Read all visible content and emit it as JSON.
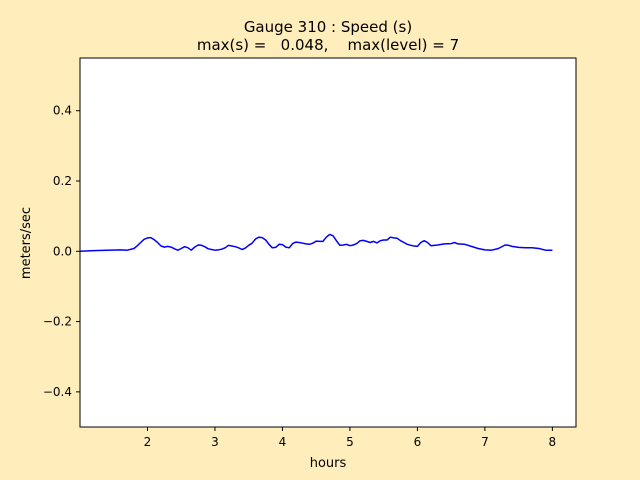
{
  "chart_data": {
    "type": "line",
    "title_line1": "Gauge 310 : Speed (s)",
    "title_line2": "max(s) =   0.048,    max(level) = 7",
    "xlabel": "hours",
    "ylabel": "meters/sec",
    "xlim": [
      1.0,
      8.35
    ],
    "ylim": [
      -0.5,
      0.55
    ],
    "xticks": [
      2,
      3,
      4,
      5,
      6,
      7,
      8
    ],
    "yticks": [
      -0.4,
      -0.2,
      0.0,
      0.2,
      0.4
    ],
    "xtick_labels": [
      "2",
      "3",
      "4",
      "5",
      "6",
      "7",
      "8"
    ],
    "ytick_labels": [
      "−0.4",
      "−0.2",
      "0.0",
      "0.2",
      "0.4"
    ],
    "grid": false,
    "series": [
      {
        "color": "#0000ff",
        "x": [
          1.0,
          1.2,
          1.4,
          1.6,
          1.7,
          1.8,
          1.85,
          1.9,
          1.95,
          2.0,
          2.05,
          2.1,
          2.15,
          2.2,
          2.25,
          2.3,
          2.35,
          2.4,
          2.45,
          2.5,
          2.55,
          2.6,
          2.65,
          2.7,
          2.75,
          2.8,
          2.85,
          2.9,
          2.95,
          3.0,
          3.05,
          3.1,
          3.15,
          3.2,
          3.25,
          3.3,
          3.35,
          3.4,
          3.45,
          3.5,
          3.55,
          3.6,
          3.65,
          3.7,
          3.75,
          3.8,
          3.85,
          3.9,
          3.95,
          4.0,
          4.05,
          4.1,
          4.15,
          4.2,
          4.25,
          4.3,
          4.35,
          4.4,
          4.45,
          4.5,
          4.55,
          4.6,
          4.65,
          4.7,
          4.75,
          4.8,
          4.85,
          4.9,
          4.95,
          5.0,
          5.05,
          5.1,
          5.15,
          5.2,
          5.25,
          5.3,
          5.35,
          5.4,
          5.45,
          5.5,
          5.55,
          5.6,
          5.65,
          5.7,
          5.75,
          5.8,
          5.85,
          5.9,
          5.95,
          6.0,
          6.05,
          6.1,
          6.15,
          6.2,
          6.3,
          6.4,
          6.5,
          6.55,
          6.6,
          6.7,
          6.8,
          6.9,
          7.0,
          7.1,
          7.2,
          7.3,
          7.35,
          7.4,
          7.5,
          7.6,
          7.7,
          7.8,
          7.9,
          8.0
        ],
        "y": [
          0.0,
          0.002,
          0.003,
          0.004,
          0.003,
          0.008,
          0.016,
          0.025,
          0.034,
          0.038,
          0.039,
          0.033,
          0.025,
          0.015,
          0.012,
          0.014,
          0.012,
          0.007,
          0.003,
          0.008,
          0.013,
          0.01,
          0.003,
          0.012,
          0.018,
          0.017,
          0.013,
          0.007,
          0.005,
          0.003,
          0.004,
          0.006,
          0.01,
          0.017,
          0.015,
          0.013,
          0.01,
          0.005,
          0.009,
          0.017,
          0.023,
          0.035,
          0.04,
          0.039,
          0.032,
          0.02,
          0.01,
          0.011,
          0.02,
          0.019,
          0.012,
          0.01,
          0.022,
          0.026,
          0.025,
          0.023,
          0.021,
          0.02,
          0.023,
          0.029,
          0.028,
          0.028,
          0.04,
          0.048,
          0.044,
          0.03,
          0.017,
          0.018,
          0.02,
          0.016,
          0.018,
          0.022,
          0.03,
          0.031,
          0.028,
          0.025,
          0.028,
          0.024,
          0.03,
          0.032,
          0.032,
          0.04,
          0.038,
          0.037,
          0.03,
          0.025,
          0.02,
          0.017,
          0.015,
          0.014,
          0.025,
          0.03,
          0.025,
          0.016,
          0.018,
          0.021,
          0.022,
          0.025,
          0.021,
          0.02,
          0.014,
          0.008,
          0.004,
          0.003,
          0.008,
          0.018,
          0.017,
          0.014,
          0.011,
          0.01,
          0.01,
          0.008,
          0.003,
          0.003
        ]
      }
    ]
  }
}
